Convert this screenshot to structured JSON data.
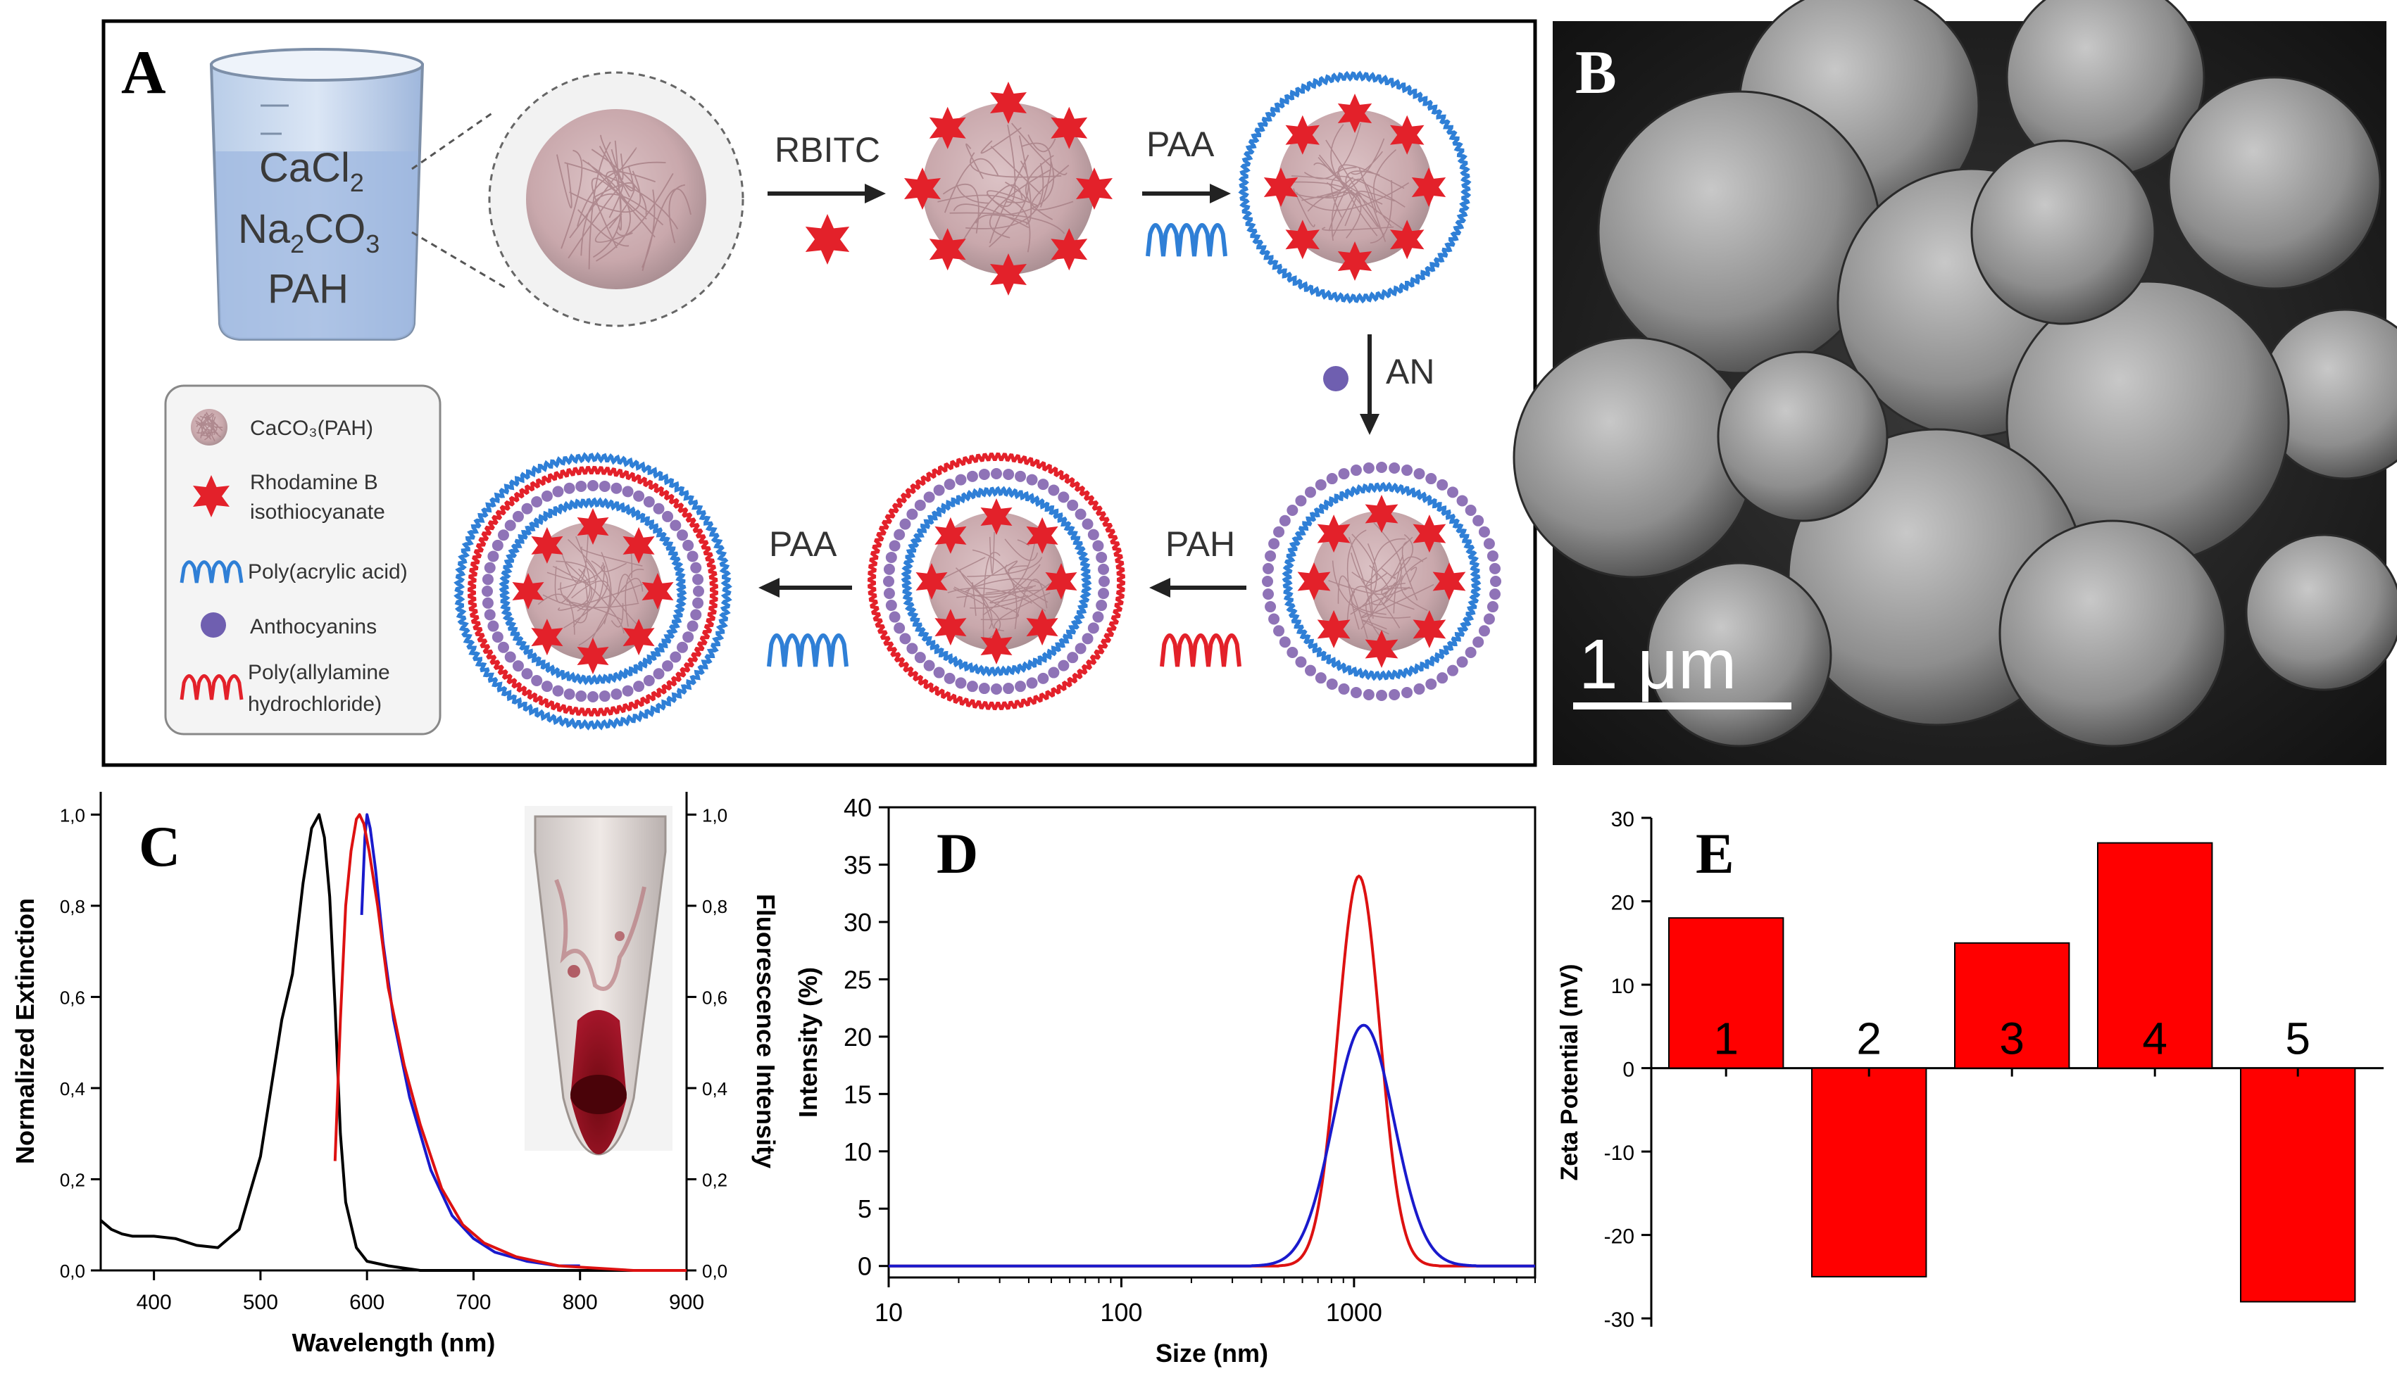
{
  "colors": {
    "red": "#e3212a",
    "blue": "#2f7fd6",
    "purple": "#8f73b7",
    "core": "#c9a8ac",
    "black": "#000000",
    "bar": "#ff0000",
    "line_blue": "#1a1acc",
    "line_red": "#dd1111"
  },
  "panel_a": {
    "label": "A",
    "beaker": {
      "line1_base": "CaCl",
      "line1_sub": "2",
      "line2_a": "Na",
      "line2_sub1": "2",
      "line2_b": "CO",
      "line2_sub2": "3",
      "line3": "PAH"
    },
    "steps": {
      "rbitc": "RBITC",
      "paa1": "PAA",
      "an": "AN",
      "pah": "PAH",
      "paa2": "PAA"
    },
    "legend": {
      "core": "CaCO₃(PAH)",
      "rbitc_1": "Rhodamine B",
      "rbitc_2": "isothiocyanate",
      "paa": "Poly(acrylic acid)",
      "an": "Anthocyanins",
      "pah_1": "Poly(allylamine",
      "pah_2": "hydrochloride)"
    }
  },
  "panel_b": {
    "label": "B",
    "scale_bar": "1 μm"
  },
  "chart_data": [
    {
      "panel": "C",
      "label": "C",
      "type": "line",
      "xlabel": "Wavelength (nm)",
      "ylabel": "Normalized Extinction",
      "y2label": "Fluorescence Intensity",
      "xlim": [
        350,
        900
      ],
      "ylim": [
        0,
        1.05
      ],
      "y2lim": [
        0,
        1.05
      ],
      "xticks": [
        400,
        500,
        600,
        700,
        800,
        900
      ],
      "xtick_labels": [
        "400",
        "500",
        "600",
        "700",
        "800",
        "900"
      ],
      "yticks": [
        0,
        0.2,
        0.4,
        0.6,
        0.8,
        1.0
      ],
      "ytick_labels": [
        "0,0",
        "0,2",
        "0,4",
        "0,6",
        "0,8",
        "1,0"
      ],
      "series": [
        {
          "name": "extinction",
          "color": "black",
          "x": [
            350,
            360,
            370,
            380,
            400,
            420,
            440,
            460,
            480,
            500,
            510,
            520,
            530,
            540,
            548,
            555,
            560,
            565,
            570,
            575,
            580,
            590,
            600,
            620,
            650,
            700,
            800,
            900
          ],
          "y": [
            0.11,
            0.09,
            0.08,
            0.075,
            0.075,
            0.07,
            0.055,
            0.05,
            0.09,
            0.25,
            0.4,
            0.55,
            0.65,
            0.85,
            0.97,
            1.0,
            0.95,
            0.82,
            0.58,
            0.3,
            0.15,
            0.05,
            0.02,
            0.01,
            0.0,
            0.0,
            0.0,
            0.0
          ]
        },
        {
          "name": "fluorescence-blue",
          "color": "blue",
          "x": [
            595,
            598,
            600,
            603,
            608,
            615,
            625,
            640,
            660,
            680,
            700,
            720,
            750,
            780,
            800
          ],
          "y": [
            0.78,
            0.95,
            1.0,
            0.97,
            0.88,
            0.72,
            0.55,
            0.38,
            0.22,
            0.12,
            0.07,
            0.04,
            0.02,
            0.01,
            0.01
          ]
        },
        {
          "name": "fluorescence-red",
          "color": "red",
          "x": [
            570,
            575,
            580,
            585,
            590,
            593,
            597,
            602,
            610,
            620,
            635,
            650,
            670,
            690,
            710,
            740,
            780,
            850,
            900
          ],
          "y": [
            0.24,
            0.55,
            0.8,
            0.92,
            0.99,
            1.0,
            0.98,
            0.92,
            0.8,
            0.62,
            0.45,
            0.32,
            0.18,
            0.1,
            0.06,
            0.03,
            0.01,
            0.0,
            0.0
          ]
        }
      ]
    },
    {
      "panel": "D",
      "label": "D",
      "type": "line",
      "xscale": "log",
      "xlabel": "Size (nm)",
      "ylabel": "Intensity (%)",
      "xlim": [
        10,
        6000
      ],
      "ylim": [
        -1,
        40
      ],
      "xticks": [
        10,
        100,
        1000
      ],
      "xtick_labels": [
        "10",
        "100",
        "1000"
      ],
      "yticks": [
        0,
        5,
        10,
        15,
        20,
        25,
        30,
        35,
        40
      ],
      "ytick_labels": [
        "0",
        "5",
        "10",
        "15",
        "20",
        "25",
        "30",
        "35",
        "40"
      ],
      "series": [
        {
          "name": "red",
          "color": "red",
          "peak_x": 1050,
          "peak_y": 34,
          "log_width": 0.09,
          "range": [
            10,
            6000
          ]
        },
        {
          "name": "blue",
          "color": "blue",
          "peak_x": 1100,
          "peak_y": 21,
          "log_width": 0.13,
          "range": [
            10,
            6000
          ]
        }
      ]
    },
    {
      "panel": "E",
      "label": "E",
      "type": "bar",
      "ylabel": "Zeta Potential (mV)",
      "categories": [
        "1",
        "2",
        "3",
        "4",
        "5"
      ],
      "values": [
        18,
        -25,
        15,
        27,
        -28
      ],
      "ylim": [
        -31,
        30
      ],
      "yticks": [
        -30,
        -20,
        -10,
        0,
        10,
        20,
        30
      ],
      "ytick_labels": [
        "-30",
        "-20",
        "-10",
        "0",
        "10",
        "20",
        "30"
      ]
    }
  ]
}
